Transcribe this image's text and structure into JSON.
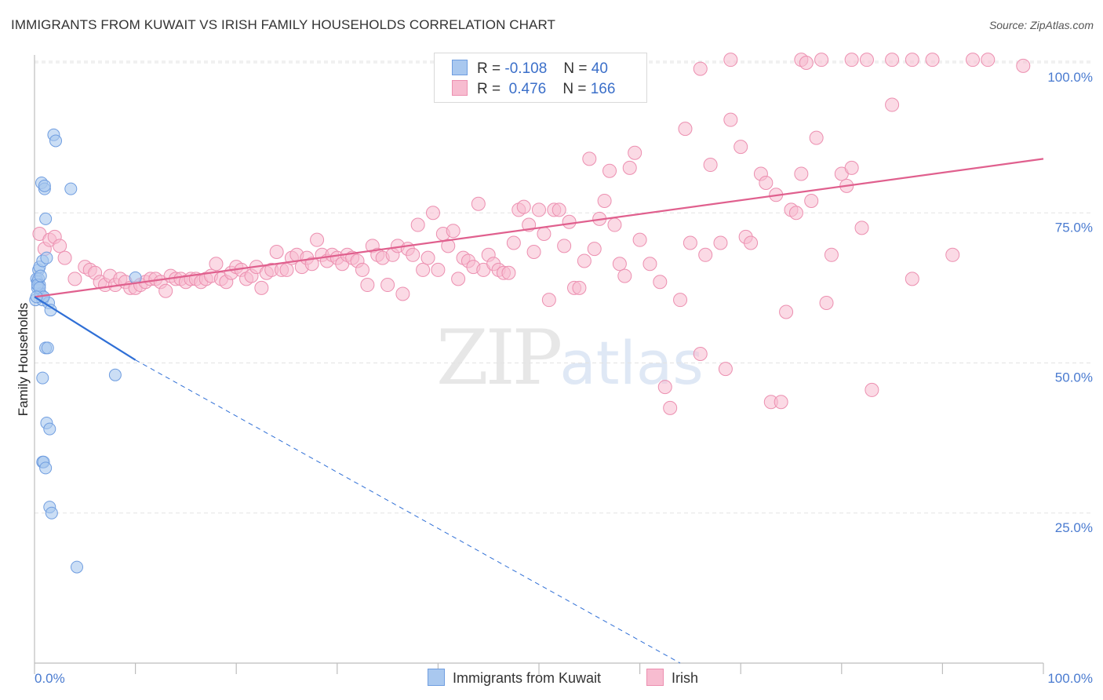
{
  "title": "IMMIGRANTS FROM KUWAIT VS IRISH FAMILY HOUSEHOLDS CORRELATION CHART",
  "source": "Source: ZipAtlas.com",
  "watermark": {
    "zip": "ZIP",
    "atlas": "atlas"
  },
  "legend": {
    "rows": [
      {
        "r_label": "R =",
        "r_value": "-0.108",
        "n_label": "N =",
        "n_value": "40"
      },
      {
        "r_label": "R =",
        "r_value": "0.476",
        "n_label": "N =",
        "n_value": "166"
      }
    ]
  },
  "bottom_legend": {
    "kuwait": "Immigrants from Kuwait",
    "irish": "Irish"
  },
  "colors": {
    "kuwait_fill": "#a9c8ef",
    "kuwait_stroke": "#6f9de0",
    "kuwait_line": "#2f6fd6",
    "irish_fill": "#f7bcd0",
    "irish_stroke": "#ec8fb0",
    "irish_line": "#e0608e",
    "grid": "#e3e3e3",
    "tick_text": "#4a7bd0"
  },
  "chart_data": {
    "type": "scatter",
    "title": "IMMIGRANTS FROM KUWAIT VS IRISH FAMILY HOUSEHOLDS CORRELATION CHART",
    "xlabel": "",
    "ylabel": "Family Households",
    "xlim": [
      0,
      100
    ],
    "ylim": [
      0,
      102
    ],
    "x_tick_labels": [
      "0.0%",
      "100.0%"
    ],
    "y_ticks": [
      25,
      50,
      75,
      100
    ],
    "y_tick_labels": [
      "25.0%",
      "50.0%",
      "75.0%",
      "100.0%"
    ],
    "series": [
      {
        "name": "Immigrants from Kuwait",
        "R": -0.108,
        "N": 40,
        "trend": {
          "x": [
            0,
            10
          ],
          "y": [
            61.0,
            50.5
          ],
          "dashed_to": [
            64,
            0
          ]
        },
        "points": [
          [
            0.1,
            60.5
          ],
          [
            0.2,
            64
          ],
          [
            0.3,
            63.5
          ],
          [
            0.3,
            62.5
          ],
          [
            0.4,
            65.5
          ],
          [
            0.4,
            64
          ],
          [
            0.5,
            66
          ],
          [
            0.5,
            63
          ],
          [
            0.6,
            61.5
          ],
          [
            0.7,
            80
          ],
          [
            0.8,
            67
          ],
          [
            0.8,
            60.5
          ],
          [
            0.9,
            61
          ],
          [
            1.0,
            79
          ],
          [
            1.0,
            79.5
          ],
          [
            1.1,
            74
          ],
          [
            1.1,
            52.5
          ],
          [
            1.2,
            67.5
          ],
          [
            1.2,
            40
          ],
          [
            1.3,
            52.5
          ],
          [
            1.4,
            60
          ],
          [
            1.5,
            39
          ],
          [
            1.5,
            26
          ],
          [
            1.6,
            58.8
          ],
          [
            1.7,
            25
          ],
          [
            1.9,
            88
          ],
          [
            2.1,
            87
          ],
          [
            0.8,
            47.5
          ],
          [
            0.8,
            33.5
          ],
          [
            0.9,
            33.5
          ],
          [
            1.1,
            32.5
          ],
          [
            3.6,
            79
          ],
          [
            4.2,
            16
          ],
          [
            8.0,
            48
          ],
          [
            0.3,
            63
          ],
          [
            0.5,
            62.5
          ],
          [
            0.6,
            64.5
          ],
          [
            0.9,
            61
          ],
          [
            0.2,
            61
          ],
          [
            10.0,
            64.2
          ]
        ]
      },
      {
        "name": "Irish",
        "R": 0.476,
        "N": 166,
        "trend": {
          "x": [
            0,
            100
          ],
          "y": [
            61.0,
            84.0
          ]
        },
        "points": [
          [
            0.5,
            71.5
          ],
          [
            1.0,
            69
          ],
          [
            1.5,
            70.5
          ],
          [
            2.0,
            71
          ],
          [
            2.5,
            69.5
          ],
          [
            3.0,
            67.5
          ],
          [
            4.0,
            64
          ],
          [
            5.0,
            66
          ],
          [
            5.5,
            65.5
          ],
          [
            6.0,
            65
          ],
          [
            6.5,
            63.5
          ],
          [
            7.0,
            63
          ],
          [
            7.5,
            64.5
          ],
          [
            8.0,
            63
          ],
          [
            8.5,
            64
          ],
          [
            9.0,
            63.5
          ],
          [
            9.5,
            62.5
          ],
          [
            10.0,
            62.5
          ],
          [
            10.5,
            63
          ],
          [
            11.0,
            63.5
          ],
          [
            11.5,
            64
          ],
          [
            12.0,
            64
          ],
          [
            12.5,
            63.5
          ],
          [
            13.0,
            62
          ],
          [
            13.5,
            64.5
          ],
          [
            14.0,
            64
          ],
          [
            14.5,
            64
          ],
          [
            15.0,
            63.5
          ],
          [
            15.5,
            64
          ],
          [
            16.0,
            64
          ],
          [
            16.5,
            63.5
          ],
          [
            17.0,
            64
          ],
          [
            17.5,
            64.5
          ],
          [
            18.0,
            66.5
          ],
          [
            18.5,
            64
          ],
          [
            19.0,
            63.5
          ],
          [
            19.5,
            65
          ],
          [
            20.0,
            66
          ],
          [
            20.5,
            65.5
          ],
          [
            21.0,
            64
          ],
          [
            21.5,
            64.5
          ],
          [
            22.0,
            66
          ],
          [
            22.5,
            62.5
          ],
          [
            23.0,
            65
          ],
          [
            23.5,
            65.5
          ],
          [
            24.0,
            68.5
          ],
          [
            24.5,
            65.5
          ],
          [
            25.0,
            65.5
          ],
          [
            25.5,
            67.5
          ],
          [
            26.0,
            68
          ],
          [
            26.5,
            66
          ],
          [
            27.0,
            67.5
          ],
          [
            27.5,
            66.5
          ],
          [
            28.0,
            70.5
          ],
          [
            28.5,
            68
          ],
          [
            29.0,
            67
          ],
          [
            29.5,
            68
          ],
          [
            30.0,
            67.5
          ],
          [
            30.5,
            66.5
          ],
          [
            31.0,
            68
          ],
          [
            31.5,
            67.5
          ],
          [
            32.0,
            67
          ],
          [
            32.5,
            65.5
          ],
          [
            33.0,
            63
          ],
          [
            33.5,
            69.5
          ],
          [
            34.0,
            68
          ],
          [
            34.5,
            67.5
          ],
          [
            35.0,
            63
          ],
          [
            35.5,
            68
          ],
          [
            36.0,
            69.5
          ],
          [
            36.5,
            61.5
          ],
          [
            37.0,
            69
          ],
          [
            37.5,
            68
          ],
          [
            38.0,
            73
          ],
          [
            38.5,
            65.5
          ],
          [
            39.0,
            67.5
          ],
          [
            39.5,
            75
          ],
          [
            40.0,
            65.5
          ],
          [
            40.5,
            71.5
          ],
          [
            41.0,
            69.5
          ],
          [
            41.5,
            72
          ],
          [
            42.0,
            64
          ],
          [
            42.5,
            67.5
          ],
          [
            43.0,
            67
          ],
          [
            43.5,
            66
          ],
          [
            44.0,
            76.5
          ],
          [
            44.5,
            65.5
          ],
          [
            45.0,
            68
          ],
          [
            45.5,
            66.5
          ],
          [
            46.0,
            65.5
          ],
          [
            46.5,
            65
          ],
          [
            47.0,
            65
          ],
          [
            47.5,
            70
          ],
          [
            48.0,
            75.5
          ],
          [
            48.5,
            76
          ],
          [
            49.0,
            73
          ],
          [
            49.5,
            68.5
          ],
          [
            50.0,
            75.5
          ],
          [
            50.5,
            71.5
          ],
          [
            51.0,
            60.5
          ],
          [
            51.5,
            75.5
          ],
          [
            52.0,
            75.5
          ],
          [
            52.5,
            69.5
          ],
          [
            53.0,
            73.5
          ],
          [
            53.5,
            62.5
          ],
          [
            54.0,
            62.5
          ],
          [
            54.5,
            67
          ],
          [
            55.0,
            84
          ],
          [
            55.5,
            69
          ],
          [
            56.0,
            74
          ],
          [
            56.5,
            77
          ],
          [
            57.0,
            82
          ],
          [
            57.5,
            73
          ],
          [
            58.0,
            66.5
          ],
          [
            58.5,
            64.5
          ],
          [
            59.0,
            82.5
          ],
          [
            59.5,
            85
          ],
          [
            60.0,
            70.5
          ],
          [
            61.0,
            66.5
          ],
          [
            62.0,
            63.5
          ],
          [
            62.5,
            46
          ],
          [
            63.0,
            42.5
          ],
          [
            64.0,
            60.5
          ],
          [
            64.5,
            89
          ],
          [
            65.0,
            70
          ],
          [
            66.0,
            51.5
          ],
          [
            66.5,
            68
          ],
          [
            67.0,
            83
          ],
          [
            68.0,
            70
          ],
          [
            68.5,
            49
          ],
          [
            69.0,
            90.5
          ],
          [
            70.0,
            86
          ],
          [
            70.5,
            71
          ],
          [
            71.0,
            70
          ],
          [
            72.0,
            81.5
          ],
          [
            72.5,
            80
          ],
          [
            73.0,
            43.5
          ],
          [
            73.5,
            78
          ],
          [
            74.0,
            43.5
          ],
          [
            74.5,
            58.5
          ],
          [
            75.0,
            75.5
          ],
          [
            75.5,
            75
          ],
          [
            76.0,
            81.5
          ],
          [
            77.0,
            77
          ],
          [
            77.5,
            87.5
          ],
          [
            78.5,
            60
          ],
          [
            79.0,
            68
          ],
          [
            80.0,
            81.5
          ],
          [
            80.5,
            79.5
          ],
          [
            81.0,
            82.5
          ],
          [
            82.0,
            72.5
          ],
          [
            83.0,
            45.5
          ],
          [
            85.0,
            93
          ],
          [
            87.0,
            64
          ],
          [
            91.0,
            68
          ],
          [
            66.0,
            99
          ],
          [
            69.0,
            100.5
          ],
          [
            76.0,
            100.5
          ],
          [
            76.5,
            100
          ],
          [
            78.0,
            100.5
          ],
          [
            81.0,
            100.5
          ],
          [
            82.5,
            100.5
          ],
          [
            85.0,
            100.5
          ],
          [
            87.0,
            100.5
          ],
          [
            89.0,
            100.5
          ],
          [
            93.0,
            100.5
          ],
          [
            94.5,
            100.5
          ],
          [
            98.0,
            99.5
          ]
        ]
      }
    ]
  }
}
